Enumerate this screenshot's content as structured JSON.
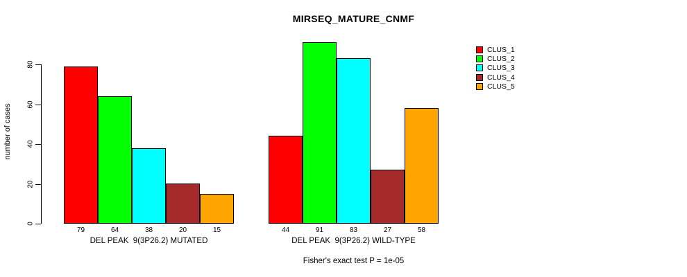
{
  "chart_data": {
    "type": "bar",
    "title": "MIRSEQ_MATURE_CNMF",
    "ylabel": "number of cases",
    "xlabel": "",
    "annotation": "Fisher's exact test P = 1e-05",
    "yticks": [
      0,
      20,
      40,
      60,
      80
    ],
    "ylim": [
      0,
      91
    ],
    "grid": false,
    "legend_position": "top-right",
    "bar_value_labels": true,
    "categories": [
      "DEL PEAK  9(3P26.2) MUTATED",
      "DEL PEAK  9(3P26.2) WILD-TYPE"
    ],
    "series": [
      {
        "name": "CLUS_1",
        "color": "#FF0000",
        "values": [
          79,
          44
        ]
      },
      {
        "name": "CLUS_2",
        "color": "#00FF00",
        "values": [
          64,
          91
        ]
      },
      {
        "name": "CLUS_3",
        "color": "#00FFFF",
        "values": [
          38,
          83
        ]
      },
      {
        "name": "CLUS_4",
        "color": "#A52A2A",
        "values": [
          20,
          27
        ]
      },
      {
        "name": "CLUS_5",
        "color": "#FFA500",
        "values": [
          15,
          58
        ]
      }
    ]
  }
}
